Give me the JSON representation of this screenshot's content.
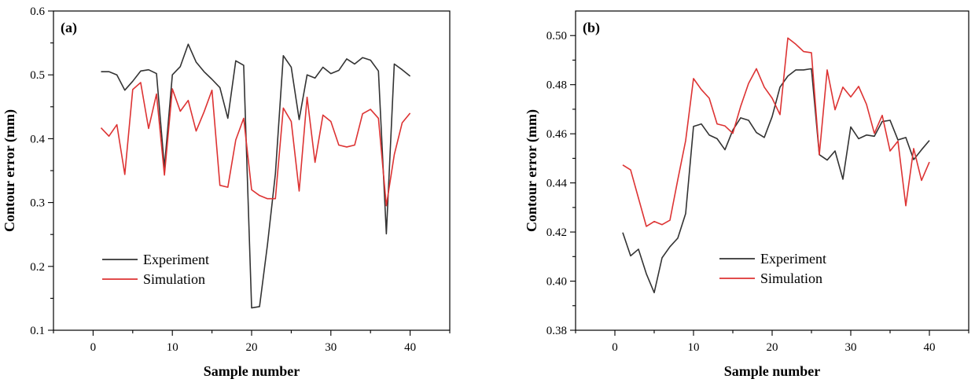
{
  "chart_data": [
    {
      "type": "line",
      "panel_label": "(a)",
      "xlabel": "Sample number",
      "ylabel": "Contour error (mm)",
      "xlim": [
        -5,
        45
      ],
      "ylim": [
        0.1,
        0.6
      ],
      "xticks": [
        0,
        10,
        20,
        30,
        40
      ],
      "xtick_labels": [
        "0",
        "10",
        "20",
        "30",
        "40"
      ],
      "yticks": [
        0.1,
        0.2,
        0.3,
        0.4,
        0.5,
        0.6
      ],
      "ytick_labels": [
        "0.1",
        "0.2",
        "0.3",
        "0.4",
        "0.5",
        "0.6"
      ],
      "legend_position": "lower-left",
      "x": [
        1,
        2,
        3,
        4,
        5,
        6,
        7,
        8,
        9,
        10,
        11,
        12,
        13,
        14,
        15,
        16,
        17,
        18,
        19,
        20,
        21,
        22,
        23,
        24,
        25,
        26,
        27,
        28,
        29,
        30,
        31,
        32,
        33,
        34,
        35,
        36,
        37,
        38,
        39,
        40
      ],
      "series": [
        {
          "name": "Experiment",
          "color": "#333333",
          "values": [
            0.505,
            0.505,
            0.5,
            0.476,
            0.49,
            0.506,
            0.508,
            0.502,
            0.355,
            0.5,
            0.513,
            0.548,
            0.52,
            0.505,
            0.493,
            0.48,
            0.432,
            0.522,
            0.515,
            0.135,
            0.137,
            0.234,
            0.345,
            0.53,
            0.512,
            0.43,
            0.5,
            0.495,
            0.512,
            0.502,
            0.507,
            0.525,
            0.517,
            0.527,
            0.523,
            0.506,
            0.251,
            0.517,
            0.508,
            0.498
          ]
        },
        {
          "name": "Simulation",
          "color": "#dd3333",
          "values": [
            0.417,
            0.404,
            0.422,
            0.344,
            0.477,
            0.488,
            0.416,
            0.47,
            0.343,
            0.478,
            0.443,
            0.46,
            0.412,
            0.442,
            0.476,
            0.327,
            0.324,
            0.398,
            0.432,
            0.32,
            0.311,
            0.306,
            0.306,
            0.448,
            0.427,
            0.318,
            0.465,
            0.363,
            0.437,
            0.427,
            0.39,
            0.387,
            0.39,
            0.439,
            0.446,
            0.432,
            0.295,
            0.375,
            0.425,
            0.44
          ]
        }
      ]
    },
    {
      "type": "line",
      "panel_label": "(b)",
      "xlabel": "Sample number",
      "ylabel": "Contour error (mm)",
      "xlim": [
        -5,
        45
      ],
      "ylim": [
        0.38,
        0.51
      ],
      "xticks": [
        0,
        10,
        20,
        30,
        40
      ],
      "xtick_labels": [
        "0",
        "10",
        "20",
        "30",
        "40"
      ],
      "yticks": [
        0.38,
        0.4,
        0.42,
        0.44,
        0.46,
        0.48,
        0.5
      ],
      "ytick_labels": [
        "0.38",
        "0.40",
        "0.42",
        "0.44",
        "0.46",
        "0.48",
        "0.50"
      ],
      "legend_position": "lower-right",
      "x": [
        1,
        2,
        3,
        4,
        5,
        6,
        7,
        8,
        9,
        10,
        11,
        12,
        13,
        14,
        15,
        16,
        17,
        18,
        19,
        20,
        21,
        22,
        23,
        24,
        25,
        26,
        27,
        28,
        29,
        30,
        31,
        32,
        33,
        34,
        35,
        36,
        37,
        38,
        39,
        40
      ],
      "series": [
        {
          "name": "Experiment",
          "color": "#333333",
          "values": [
            0.4198,
            0.4103,
            0.413,
            0.403,
            0.3953,
            0.4095,
            0.414,
            0.4175,
            0.4275,
            0.463,
            0.464,
            0.4595,
            0.458,
            0.4535,
            0.4615,
            0.4665,
            0.4655,
            0.4605,
            0.4585,
            0.467,
            0.479,
            0.4835,
            0.486,
            0.486,
            0.4865,
            0.4515,
            0.4493,
            0.453,
            0.4415,
            0.4628,
            0.458,
            0.4595,
            0.459,
            0.465,
            0.4655,
            0.4575,
            0.4585,
            0.4495,
            0.4535,
            0.4573
          ]
        },
        {
          "name": "Simulation",
          "color": "#dd3333",
          "values": [
            0.4473,
            0.4453,
            0.4338,
            0.4223,
            0.4243,
            0.423,
            0.4248,
            0.4413,
            0.4572,
            0.4825,
            0.478,
            0.4745,
            0.464,
            0.4632,
            0.4602,
            0.4712,
            0.4805,
            0.4865,
            0.479,
            0.4745,
            0.4678,
            0.499,
            0.4965,
            0.4935,
            0.493,
            0.4515,
            0.486,
            0.4698,
            0.479,
            0.475,
            0.4793,
            0.472,
            0.4602,
            0.4675,
            0.453,
            0.457,
            0.4307,
            0.454,
            0.441,
            0.4485
          ]
        }
      ]
    }
  ]
}
